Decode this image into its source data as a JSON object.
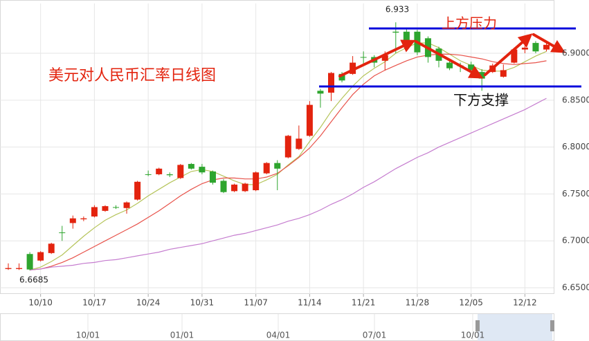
{
  "chart_data": {
    "type": "candlestick",
    "title": "美元对人民币汇率日线图",
    "categories": [
      null,
      null,
      null,
      "10/10",
      null,
      null,
      null,
      null,
      "10/17",
      null,
      null,
      null,
      null,
      "10/24",
      null,
      null,
      null,
      null,
      "10/31",
      null,
      null,
      null,
      null,
      "11/07",
      null,
      null,
      null,
      null,
      "11/14",
      null,
      null,
      null,
      null,
      "11/21",
      null,
      null,
      null,
      null,
      "11/28",
      null,
      null,
      null,
      null,
      "12/05",
      null,
      null,
      null,
      null,
      "12/12",
      null,
      null
    ],
    "open": [
      6.67,
      6.67,
      6.686,
      6.679,
      6.687,
      6.709,
      6.719,
      6.723,
      6.726,
      6.732,
      6.736,
      6.735,
      6.744,
      6.771,
      6.771,
      6.771,
      6.767,
      6.782,
      6.779,
      6.774,
      6.764,
      6.753,
      6.753,
      6.754,
      6.772,
      6.783,
      6.789,
      6.798,
      6.812,
      6.86,
      6.858,
      6.878,
      6.878,
      6.896,
      6.896,
      6.892,
      6.923,
      6.923,
      6.923,
      6.916,
      6.905,
      6.89,
      6.887,
      6.888,
      6.88,
      6.88,
      6.875,
      6.89,
      6.904,
      6.911,
      6.904
    ],
    "high": [
      6.676,
      6.676,
      6.688,
      6.689,
      6.698,
      6.716,
      6.727,
      6.726,
      6.738,
      6.738,
      6.738,
      6.742,
      6.764,
      6.775,
      6.778,
      6.773,
      6.782,
      6.783,
      6.782,
      6.775,
      6.766,
      6.761,
      6.762,
      6.774,
      6.784,
      6.786,
      6.813,
      6.823,
      6.849,
      6.862,
      6.88,
      6.88,
      6.897,
      6.902,
      6.898,
      6.902,
      6.933,
      6.926,
      6.925,
      6.918,
      6.907,
      6.893,
      6.89,
      6.891,
      6.883,
      6.889,
      6.888,
      6.906,
      6.91,
      6.913,
      6.911
    ],
    "low": [
      6.669,
      6.669,
      6.6685,
      6.678,
      6.686,
      6.7,
      6.713,
      6.721,
      6.725,
      6.731,
      6.734,
      6.729,
      6.743,
      6.769,
      6.77,
      6.768,
      6.766,
      6.776,
      6.771,
      6.76,
      6.751,
      6.752,
      6.752,
      6.753,
      6.771,
      6.754,
      6.788,
      6.797,
      6.811,
      6.842,
      6.849,
      6.869,
      6.877,
      6.888,
      6.885,
      6.882,
      6.9,
      6.912,
      6.898,
      6.89,
      6.885,
      6.882,
      6.88,
      6.876,
      6.86,
      6.879,
      6.874,
      6.889,
      6.9,
      6.9,
      6.902
    ],
    "close": [
      6.671,
      6.671,
      6.6695,
      6.688,
      6.697,
      6.709,
      6.724,
      6.724,
      6.736,
      6.737,
      6.736,
      6.741,
      6.763,
      6.771,
      6.777,
      6.77,
      6.781,
      6.777,
      6.773,
      6.762,
      6.752,
      6.76,
      6.761,
      6.773,
      6.783,
      6.777,
      6.812,
      6.809,
      6.845,
      6.857,
      6.879,
      6.871,
      6.89,
      6.896,
      6.89,
      6.898,
      6.922,
      6.914,
      6.901,
      6.896,
      6.892,
      6.884,
      6.887,
      6.882,
      6.873,
      6.887,
      6.882,
      6.904,
      6.906,
      6.902,
      6.909
    ],
    "up_color": "#e3230e",
    "down_color": "#2ea52e",
    "moving_averages": [
      {
        "color": "#b5c45a",
        "values": [
          null,
          null,
          6.669,
          6.672,
          6.678,
          6.685,
          6.695,
          6.705,
          6.714,
          6.722,
          6.728,
          6.733,
          6.74,
          6.748,
          6.755,
          6.762,
          6.768,
          6.774,
          6.776,
          6.774,
          6.769,
          6.764,
          6.76,
          6.76,
          6.765,
          6.771,
          6.781,
          6.79,
          6.806,
          6.821,
          6.838,
          6.852,
          6.865,
          6.876,
          6.884,
          6.891,
          6.9,
          6.906,
          6.911,
          6.911,
          6.906,
          6.899,
          6.892,
          6.887,
          6.882,
          6.881,
          6.881,
          6.885,
          6.891,
          6.897,
          6.902
        ]
      },
      {
        "color": "#e8524a",
        "values": [
          null,
          null,
          6.669,
          6.67,
          6.673,
          6.677,
          6.682,
          6.688,
          6.694,
          6.7,
          6.706,
          6.712,
          6.718,
          6.725,
          6.732,
          6.74,
          6.748,
          6.755,
          6.761,
          6.765,
          6.767,
          6.767,
          6.766,
          6.766,
          6.768,
          6.772,
          6.78,
          6.789,
          6.799,
          6.812,
          6.827,
          6.842,
          6.856,
          6.867,
          6.876,
          6.882,
          6.887,
          6.892,
          6.896,
          6.898,
          6.899,
          6.899,
          6.898,
          6.896,
          6.894,
          6.891,
          6.889,
          6.888,
          6.889,
          6.89,
          6.892
        ]
      },
      {
        "color": "#c57ccf",
        "values": [
          null,
          null,
          6.669,
          6.67,
          6.672,
          6.673,
          6.674,
          6.676,
          6.677,
          6.679,
          6.68,
          6.682,
          6.684,
          6.686,
          6.688,
          6.691,
          6.693,
          6.695,
          6.697,
          6.7,
          6.703,
          6.706,
          6.708,
          6.711,
          6.714,
          6.717,
          6.721,
          6.724,
          6.728,
          6.733,
          6.739,
          6.744,
          6.75,
          6.757,
          6.763,
          6.77,
          6.777,
          6.783,
          6.789,
          6.794,
          6.8,
          6.805,
          6.81,
          6.815,
          6.82,
          6.825,
          6.83,
          6.835,
          6.84,
          6.846,
          6.852
        ]
      }
    ],
    "levels": [
      {
        "label": "上方压力",
        "value": 6.9265,
        "color": "#0a0adc"
      },
      {
        "label": "下方支撑",
        "value": 6.8646,
        "color": "#0a0adc"
      }
    ],
    "ylim": [
      6.6434,
      6.9531
    ],
    "yticks": [
      {
        "value": 6.65,
        "label": "6.6500"
      },
      {
        "value": 6.7,
        "label": "6.7000"
      },
      {
        "value": 6.75,
        "label": "6.7500"
      },
      {
        "value": 6.8,
        "label": "6.8000"
      },
      {
        "value": 6.85,
        "label": "6.8500"
      },
      {
        "value": 6.9,
        "label": "6.9000"
      }
    ],
    "grid": true,
    "navigator": {
      "labels": [
        "10/01",
        "01/01",
        "04/01",
        "07/01",
        "10/01"
      ]
    }
  }
}
